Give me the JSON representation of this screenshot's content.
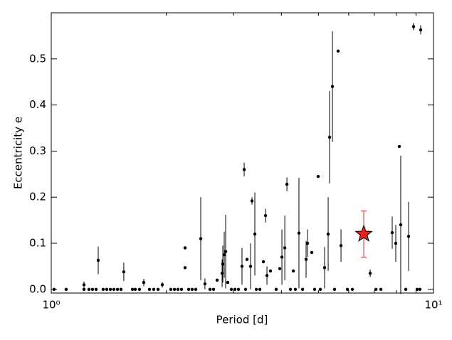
{
  "chart_data": {
    "type": "scatter",
    "xlabel": "Period [d]",
    "ylabel": "Eccentricity e",
    "xscale": "log",
    "xlim": [
      1,
      10
    ],
    "xticks": [
      {
        "value": 1,
        "label": "10⁰"
      },
      {
        "value": 10,
        "label": "10¹"
      }
    ],
    "xminor_ticks": [
      2,
      3,
      4,
      5,
      6,
      7,
      8,
      9
    ],
    "ylim": [
      -0.008,
      0.6
    ],
    "yticks": [
      {
        "value": 0,
        "label": "0.0"
      },
      0.1,
      0.2,
      0.3,
      0.4,
      0.5
    ],
    "grid": false,
    "series": [
      {
        "color": "#000000",
        "marker": "dot",
        "x": [
          1.017,
          1.094,
          1.218,
          1.327,
          1.548,
          1.631,
          1.746,
          1.952,
          2.239,
          2.239,
          2.461,
          2.524,
          2.716,
          2.799,
          2.811,
          2.835,
          2.859,
          2.896,
          3.155,
          3.197,
          3.252,
          3.322,
          3.351,
          3.409,
          3.589,
          3.636,
          3.667,
          3.746,
          3.962,
          4.013,
          4.083,
          4.136,
          4.299,
          4.446,
          4.642,
          4.682,
          4.804,
          4.993,
          5.189,
          5.302,
          5.347,
          5.44,
          5.63,
          5.728,
          6.829,
          7.798,
          7.967,
          8.139,
          8.209,
          8.607,
          8.869,
          9.258,
          1.218,
          1.255,
          1.282,
          1.31,
          1.367,
          1.397,
          1.428,
          1.458,
          1.49,
          1.522,
          1.659,
          1.701,
          1.807,
          1.854,
          1.903,
          2.055,
          2.1,
          2.145,
          2.192,
          2.288,
          2.337,
          2.388,
          2.602,
          2.658,
          2.959,
          3.023,
          3.089,
          3.224,
          3.439,
          3.513,
          3.877,
          4.223,
          4.352,
          4.544,
          4.887,
          5.057,
          5.51,
          5.953,
          6.135,
          7.068,
          7.282,
          8.462,
          9.062,
          9.218
        ],
        "values": [
          0,
          0,
          0.01,
          0.063,
          0.038,
          0,
          0.015,
          0.01,
          0.047,
          0.09,
          0.11,
          0.012,
          0.02,
          0.035,
          0.055,
          0.075,
          0.082,
          0.015,
          0.05,
          0.26,
          0.065,
          0.05,
          0.192,
          0.12,
          0.06,
          0.16,
          0.03,
          0.04,
          0.045,
          0.07,
          0.09,
          0.228,
          0.04,
          0.122,
          0.065,
          0.1,
          0.08,
          0.245,
          0.047,
          0.12,
          0.33,
          0.44,
          0.517,
          0.095,
          0.035,
          0.123,
          0.1,
          0.31,
          0.14,
          0.115,
          0.57,
          0.563,
          0,
          0,
          0,
          0,
          0,
          0,
          0,
          0,
          0,
          0,
          0,
          0,
          0,
          0,
          0,
          0,
          0,
          0,
          0,
          0,
          0,
          0,
          0,
          0,
          0,
          0,
          0,
          0,
          0,
          0,
          0,
          0,
          0,
          0,
          0,
          0,
          0,
          0,
          0,
          0,
          0,
          0,
          0,
          0
        ],
        "errors": [
          null,
          null,
          0.007,
          0.03,
          0.02,
          null,
          0.008,
          0.006,
          null,
          null,
          0.09,
          0.012,
          null,
          0.03,
          0.04,
          0.05,
          0.08,
          null,
          0.04,
          0.015,
          null,
          0.05,
          0.008,
          0.09,
          null,
          0.015,
          0.02,
          null,
          null,
          0.06,
          0.07,
          0.015,
          null,
          0.12,
          0.04,
          0.03,
          null,
          null,
          0.045,
          0.08,
          0.1,
          0.12,
          null,
          0.035,
          0.008,
          0.035,
          0.04,
          null,
          0.15,
          0.075,
          0.008,
          0.01,
          null,
          null,
          null,
          null,
          null,
          null,
          null,
          null,
          null,
          null,
          null,
          null,
          null,
          null,
          null,
          null,
          null,
          null,
          null,
          null,
          null,
          null,
          null,
          null,
          null,
          null,
          null,
          null,
          null,
          null,
          null,
          null,
          null,
          null,
          null,
          null,
          null,
          null,
          null,
          null,
          null,
          null,
          null,
          null
        ]
      },
      {
        "color": "#e8201c",
        "marker": "star",
        "error_color": "#e8201c",
        "x": [
          6.571
        ],
        "values": [
          0.12
        ],
        "errors": [
          0.05
        ]
      }
    ]
  }
}
